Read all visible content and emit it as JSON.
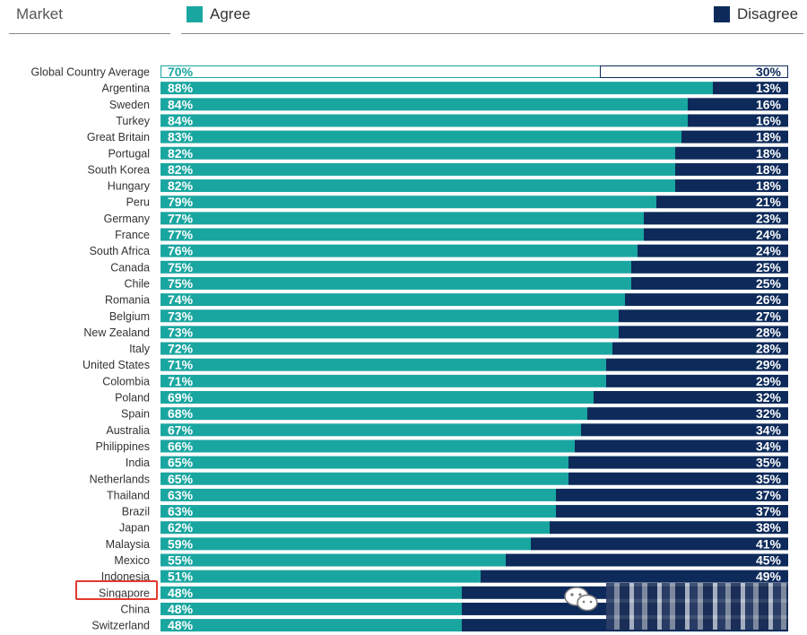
{
  "header": {
    "market_label": "Market",
    "agree_label": "Agree",
    "disagree_label": "Disagree"
  },
  "colors": {
    "agree": "#1aa6a0",
    "disagree": "#0d2a5a",
    "highlight": "#e23a2e"
  },
  "chart_data": {
    "type": "bar",
    "orientation": "horizontal",
    "stacked": true,
    "categories": [
      "Global Country Average",
      "Argentina",
      "Sweden",
      "Turkey",
      "Great Britain",
      "Portugal",
      "South Korea",
      "Hungary",
      "Peru",
      "Germany",
      "France",
      "South Africa",
      "Canada",
      "Chile",
      "Romania",
      "Belgium",
      "New Zealand",
      "Italy",
      "United States",
      "Colombia",
      "Poland",
      "Spain",
      "Australia",
      "Philippines",
      "India",
      "Netherlands",
      "Thailand",
      "Brazil",
      "Japan",
      "Malaysia",
      "Mexico",
      "Indonesia",
      "Singapore",
      "China",
      "Switzerland"
    ],
    "series": [
      {
        "name": "Agree",
        "values": [
          70,
          88,
          84,
          84,
          83,
          82,
          82,
          82,
          79,
          77,
          77,
          76,
          75,
          75,
          74,
          73,
          73,
          72,
          71,
          71,
          69,
          68,
          67,
          66,
          65,
          65,
          63,
          63,
          62,
          59,
          55,
          51,
          48,
          48,
          48
        ]
      },
      {
        "name": "Disagree",
        "values": [
          30,
          13,
          16,
          16,
          18,
          18,
          18,
          18,
          21,
          23,
          24,
          24,
          25,
          25,
          26,
          27,
          28,
          28,
          29,
          29,
          32,
          32,
          34,
          34,
          35,
          35,
          37,
          37,
          38,
          41,
          45,
          49,
          null,
          null,
          null
        ]
      }
    ],
    "highlighted_category": "Singapore",
    "xlim": [
      0,
      100
    ],
    "legend": "top",
    "grid": false
  }
}
